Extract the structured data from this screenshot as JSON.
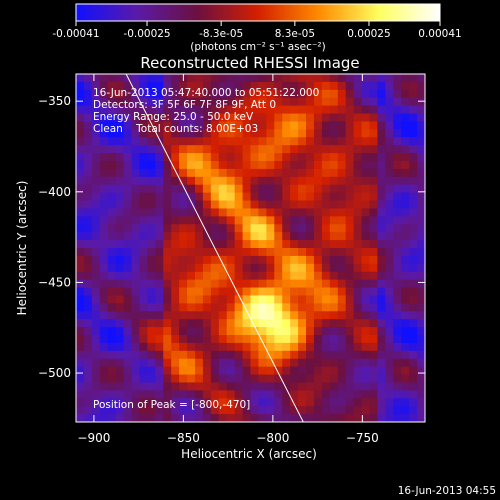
{
  "colorbar": {
    "tick_labels": [
      "-0.00041",
      "-0.00025",
      "-8.3e-05",
      "8.3e-05",
      "0.00025",
      "0.00041"
    ],
    "tick_values": [
      -0.00041,
      -0.00025,
      -8.3e-05,
      8.3e-05,
      0.00025,
      0.00041
    ],
    "unit_label": "(photons cm⁻² s⁻¹ asec⁻²)",
    "range": [
      -0.00041,
      0.00041
    ],
    "colors": [
      "#1010ff",
      "#5a1aa8",
      "#6b1040",
      "#d42000",
      "#ff8a00",
      "#ffff60",
      "#ffffff"
    ]
  },
  "chart_data": {
    "type": "heatmap",
    "title": "Reconstructed RHESSI Image",
    "xlabel": "Heliocentric X (arcsec)",
    "ylabel": "Heliocentric Y (arcsec)",
    "xlim": [
      -910,
      -715
    ],
    "ylim": [
      -527,
      -335
    ],
    "x_ticks": [
      -900,
      -850,
      -800,
      -750
    ],
    "y_ticks": [
      -350,
      -400,
      -450,
      -500
    ],
    "annotations": [
      "16-Jun-2013 05:47:40.000 to 05:51:22.000",
      "Detectors: 3F 5F 6F 7F 8F 9F, Att 0",
      "Energy Range: 25.0 - 50.0 keV",
      "Clean    Total counts: 8.00E+03"
    ],
    "peak_label": "Position of Peak = [-800,-470]",
    "peak": {
      "x": -800,
      "y": -470
    },
    "limb_line": [
      [
        -882,
        -335
      ],
      [
        -783,
        -527
      ]
    ],
    "sources": [
      {
        "x": -800,
        "y": -470,
        "value": 1.0
      },
      {
        "x": -830,
        "y": -385,
        "value": 0.55
      },
      {
        "x": -790,
        "y": -360,
        "value": 0.5
      },
      {
        "x": -810,
        "y": -420,
        "value": 0.45
      },
      {
        "x": -845,
        "y": -450,
        "value": 0.35
      },
      {
        "x": -770,
        "y": -440,
        "value": 0.35
      },
      {
        "x": -855,
        "y": -490,
        "value": 0.3
      },
      {
        "x": -760,
        "y": -390,
        "value": 0.3
      }
    ],
    "min_value": -0.00041,
    "max_value": 0.00041
  },
  "timestamp": "16-Jun-2013 04:55"
}
